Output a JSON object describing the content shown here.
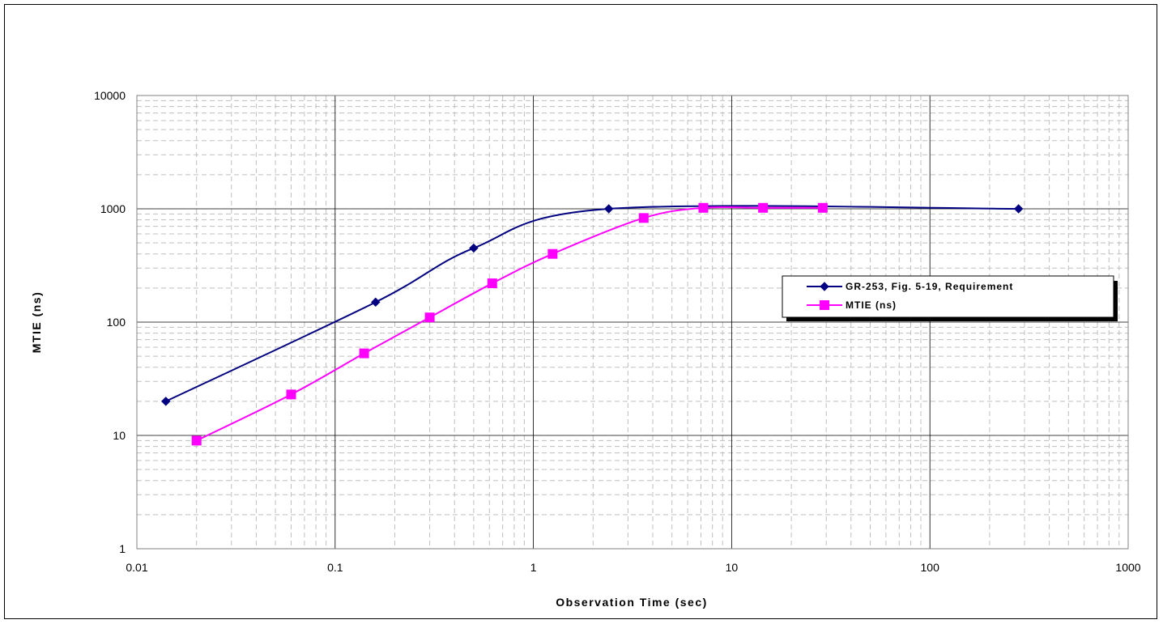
{
  "chart_data": {
    "type": "line",
    "title": "",
    "xlabel": "Observation Time (sec)",
    "ylabel": "MTIE (ns)",
    "xscale": "log",
    "yscale": "log",
    "xlim": [
      0.01,
      1000
    ],
    "ylim": [
      1,
      10000
    ],
    "x_tick_labels": [
      "0.01",
      "0.1",
      "1",
      "10",
      "100",
      "1000"
    ],
    "y_tick_labels": [
      "1",
      "10",
      "100",
      "1000",
      "10000"
    ],
    "grid": "major solid, minor dashed",
    "legend_position": "right",
    "series": [
      {
        "name": "GR-253, Fig. 5-19, Requirement",
        "color": "#000080",
        "marker": "diamond",
        "x": [
          0.014,
          0.16,
          0.5,
          2.4,
          280
        ],
        "y": [
          20,
          150,
          450,
          1000,
          1000
        ]
      },
      {
        "name": "MTIE (ns)",
        "color": "#ff00ff",
        "marker": "square",
        "x": [
          0.02,
          0.06,
          0.14,
          0.3,
          0.62,
          1.25,
          3.6,
          7.2,
          14.4,
          28.8
        ],
        "y": [
          9,
          23,
          53,
          110,
          220,
          400,
          830,
          1020,
          1020,
          1020
        ]
      }
    ]
  }
}
